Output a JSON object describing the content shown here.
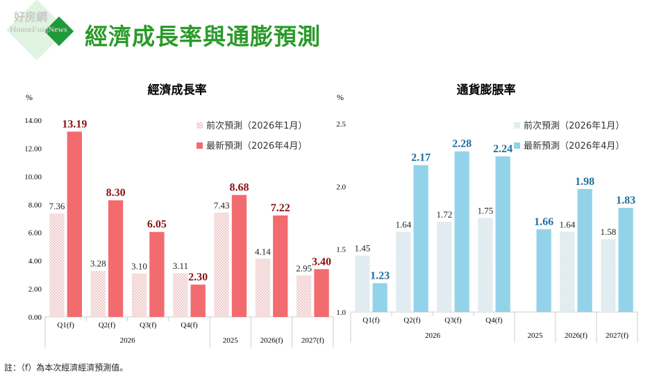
{
  "header": {
    "title": "經濟成長率與通膨預測",
    "logo_text": "好房網 HouseFun News"
  },
  "note": "註：（f）為本次經濟經濟預測值。",
  "colors": {
    "title": "#2a9a2a",
    "gdp_latest": "#f26b6f",
    "gdp_prev": "#f2c9c9",
    "gdp_latest_label": "#8b1010",
    "cpi_latest": "#93d3ea",
    "cpi_prev": "#cfe3ec",
    "cpi_latest_label": "#1f6fa0"
  },
  "chart_data": [
    {
      "type": "bar",
      "title": "經濟成長率",
      "ylabel": "%",
      "ylim": [
        0,
        14
      ],
      "yticks": [
        "0.00",
        "2.00",
        "4.00",
        "6.00",
        "8.00",
        "10.00",
        "12.00",
        "14.00"
      ],
      "categories": [
        "Q1(f)",
        "Q2(f)",
        "Q3(f)",
        "Q4(f)",
        "2025",
        "2026(f)",
        "2027(f)"
      ],
      "group_label": "2026",
      "legend_position": "top-right",
      "series": [
        {
          "name": "前次預測（2026年1月）",
          "values": [
            7.36,
            3.28,
            3.1,
            3.11,
            7.43,
            4.14,
            2.95
          ],
          "labels": [
            "7.36",
            "3.28",
            "3.10",
            "3.11",
            "7.43",
            "4.14",
            "2.95"
          ]
        },
        {
          "name": "最新預測（2026年4月）",
          "values": [
            13.19,
            8.3,
            6.05,
            2.3,
            8.68,
            7.22,
            3.4
          ],
          "labels": [
            "13.19",
            "8.30",
            "6.05",
            "2.30",
            "8.68",
            "7.22",
            "3.40"
          ]
        }
      ]
    },
    {
      "type": "bar",
      "title": "通貨膨脹率",
      "ylabel": "%",
      "ylim": [
        1.0,
        2.5
      ],
      "yticks": [
        "1.0",
        "1.5",
        "2.0",
        "2.5"
      ],
      "categories": [
        "Q1(f)",
        "Q2(f)",
        "Q3(f)",
        "Q4(f)",
        "2025",
        "2026(f)",
        "2027(f)"
      ],
      "group_label": "2026",
      "legend_position": "top-right",
      "series": [
        {
          "name": "前次預測（2026年1月）",
          "values": [
            1.45,
            1.64,
            1.72,
            1.75,
            null,
            1.64,
            1.58
          ],
          "labels": [
            "1.45",
            "1.64",
            "1.72",
            "1.75",
            "",
            "1.64",
            "1.58"
          ]
        },
        {
          "name": "最新預測（2026年4月）",
          "values": [
            1.23,
            2.17,
            2.28,
            2.24,
            1.66,
            1.98,
            1.83
          ],
          "labels": [
            "1.23",
            "2.17",
            "2.28",
            "2.24",
            "1.66",
            "1.98",
            "1.83"
          ]
        }
      ]
    }
  ]
}
